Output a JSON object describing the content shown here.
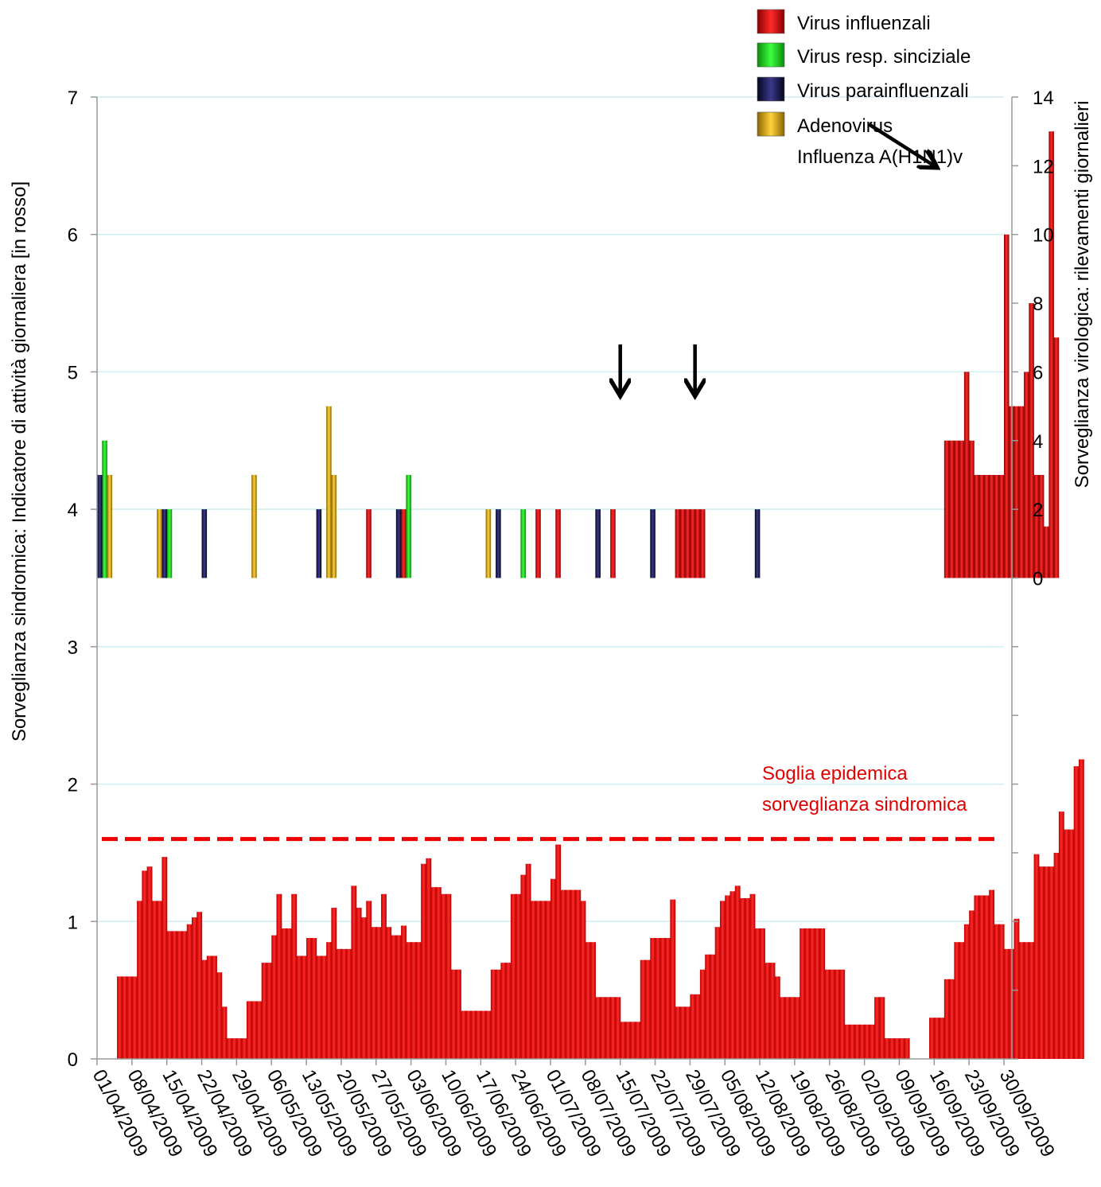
{
  "chart_data": {
    "type": "bar",
    "title": "",
    "x_ticks": [
      "01/04/2009",
      "08/04/2009",
      "15/04/2009",
      "22/04/2009",
      "29/04/2009",
      "06/05/2009",
      "13/05/2009",
      "20/05/2009",
      "27/05/2009",
      "03/06/2009",
      "10/06/2009",
      "17/06/2009",
      "24/06/2009",
      "01/07/2009",
      "08/07/2009",
      "15/07/2009",
      "22/07/2009",
      "29/07/2009",
      "05/08/2009",
      "12/08/2009",
      "19/08/2009",
      "26/08/2009",
      "02/09/2009",
      "09/09/2009",
      "16/09/2009",
      "23/09/2009",
      "30/09/2009"
    ],
    "ylabel": "Sorveglianza sindromica: Indicatore di attività giornaliera [in rosso]",
    "y2label": "Sorveglianza virologica: rilevamenti giornalieri",
    "ylim": [
      0,
      7
    ],
    "y_ticks": [
      "0",
      "1",
      "2",
      "3",
      "4",
      "5",
      "6",
      "7"
    ],
    "y2_ticks": [
      "0",
      "2",
      "4",
      "6",
      "8",
      "10",
      "12",
      "14"
    ],
    "grid": true,
    "legend_position": "top-right",
    "colors": {
      "syndromic": "#ff1010",
      "influenza": "#d40000",
      "rsv": "#1fcf1f",
      "parainfluenza": "#1a1a4a",
      "adenovirus": "#d4a300",
      "threshold": "#ee0000",
      "grid": "#cdeef2"
    },
    "syndromic_series": {
      "name": "",
      "start_day": "05/04/2009",
      "values": [
        0.6,
        0.6,
        0.6,
        0.6,
        1.15,
        1.37,
        1.4,
        1.15,
        1.15,
        1.47,
        0.93,
        0.93,
        0.93,
        0.93,
        0.98,
        1.03,
        1.07,
        0.72,
        0.75,
        0.75,
        0.63,
        0.38,
        0.15,
        0.15,
        0.15,
        0.15,
        0.42,
        0.42,
        0.42,
        0.7,
        0.7,
        0.9,
        1.2,
        0.95,
        0.95,
        1.2,
        0.75,
        0.75,
        0.88,
        0.88,
        0.75,
        0.75,
        0.85,
        1.1,
        0.8,
        0.8,
        0.8,
        1.26,
        1.1,
        1.03,
        1.15,
        0.96,
        0.96,
        1.2,
        0.96,
        0.9,
        0.9,
        0.97,
        0.85,
        0.85,
        0.85,
        1.42,
        1.46,
        1.25,
        1.25,
        1.2,
        1.2,
        0.65,
        0.65,
        0.35,
        0.35,
        0.35,
        0.35,
        0.35,
        0.35,
        0.65,
        0.65,
        0.7,
        0.7,
        1.2,
        1.2,
        1.34,
        1.42,
        1.15,
        1.15,
        1.15,
        1.15,
        1.31,
        1.56,
        1.23,
        1.23,
        1.23,
        1.23,
        1.15,
        0.85,
        0.85,
        0.45,
        0.45,
        0.45,
        0.45,
        0.45,
        0.27,
        0.27,
        0.27,
        0.27,
        0.72,
        0.72,
        0.88,
        0.88,
        0.88,
        0.88,
        1.16,
        0.38,
        0.38,
        0.38,
        0.47,
        0.47,
        0.65,
        0.76,
        0.76,
        0.96,
        1.15,
        1.19,
        1.22,
        1.26,
        1.17,
        1.17,
        1.2,
        0.95,
        0.95,
        0.7,
        0.7,
        0.6,
        0.45,
        0.45,
        0.45,
        0.45,
        0.95,
        0.95,
        0.95,
        0.95,
        0.95,
        0.65,
        0.65,
        0.65,
        0.65,
        0.25,
        0.25,
        0.25,
        0.25,
        0.25,
        0.25,
        0.45,
        0.45,
        0.15,
        0.15,
        0.15,
        0.15,
        0.15,
        0,
        0,
        0,
        0,
        0.3,
        0.3,
        0.3,
        0.58,
        0.58,
        0.85,
        0.85,
        0.98,
        1.08,
        1.19,
        1.19,
        1.19,
        1.23,
        0.98,
        0.98,
        0.8,
        0.8,
        1.02,
        0.85,
        0.85,
        0.85,
        1.49,
        1.4,
        1.4,
        1.4,
        1.5,
        1.8,
        1.67,
        1.67,
        2.13,
        2.18
      ]
    },
    "threshold": {
      "value": 1.6,
      "label_line1": "Soglia epidemica",
      "label_line2": "sorveglianza sindromica"
    },
    "virology_series": [
      {
        "name": "Virus influenzali",
        "key": "influenza",
        "bars": [
          [
            0,
            1
          ],
          [
            54,
            1
          ],
          [
            61,
            1
          ],
          [
            88,
            1
          ],
          [
            92,
            1
          ],
          [
            103,
            1
          ],
          [
            116,
            1
          ],
          [
            117,
            1
          ],
          [
            118,
            1
          ],
          [
            119,
            1
          ],
          [
            120,
            1
          ],
          [
            121,
            1
          ],
          [
            170,
            3
          ],
          [
            171,
            3
          ],
          [
            172,
            3
          ],
          [
            173,
            3
          ],
          [
            174,
            5
          ],
          [
            175,
            3
          ],
          [
            176,
            2
          ],
          [
            177,
            2
          ],
          [
            178,
            2
          ],
          [
            179,
            2
          ],
          [
            180,
            2
          ],
          [
            181,
            2
          ],
          [
            182,
            9
          ],
          [
            183,
            4
          ],
          [
            184,
            4
          ],
          [
            185,
            4
          ],
          [
            186,
            5
          ],
          [
            187,
            7
          ],
          [
            188,
            2
          ],
          [
            189,
            2
          ],
          [
            190,
            0
          ],
          [
            191,
            12
          ],
          [
            192,
            6
          ]
        ]
      },
      {
        "name": "Virus resp. sinciziale",
        "key": "rsv",
        "bars": [
          [
            1,
            3
          ],
          [
            14,
            1
          ],
          [
            62,
            2
          ],
          [
            85,
            1
          ]
        ]
      },
      {
        "name": "Virus parainfluenzali",
        "key": "parainfluenza",
        "bars": [
          [
            0,
            2
          ],
          [
            13,
            1
          ],
          [
            21,
            1
          ],
          [
            44,
            1
          ],
          [
            60,
            1
          ],
          [
            80,
            1
          ],
          [
            100,
            1
          ],
          [
            111,
            1
          ],
          [
            132,
            1
          ]
        ]
      },
      {
        "name": "Adenovirus",
        "key": "adenovirus",
        "bars": [
          [
            2,
            2
          ],
          [
            12,
            1
          ],
          [
            31,
            2
          ],
          [
            46,
            4
          ],
          [
            47,
            2
          ],
          [
            78,
            1
          ]
        ]
      }
    ],
    "annotation_label": "Influenza A(H1N1)v",
    "arrows": [
      {
        "start_day": 105,
        "end_day": 105,
        "from_v": 5.2,
        "to_v": 4.85
      },
      {
        "start_day": 120,
        "end_day": 120,
        "from_v": 5.2,
        "to_v": 4.85
      },
      {
        "start_day": 155,
        "end_day": 168,
        "from_v": 6.8,
        "to_v": 6.5
      },
      {
        "start_day": 218,
        "end_day": 218,
        "from_v": 6.6,
        "to_v": 6.2
      }
    ]
  }
}
